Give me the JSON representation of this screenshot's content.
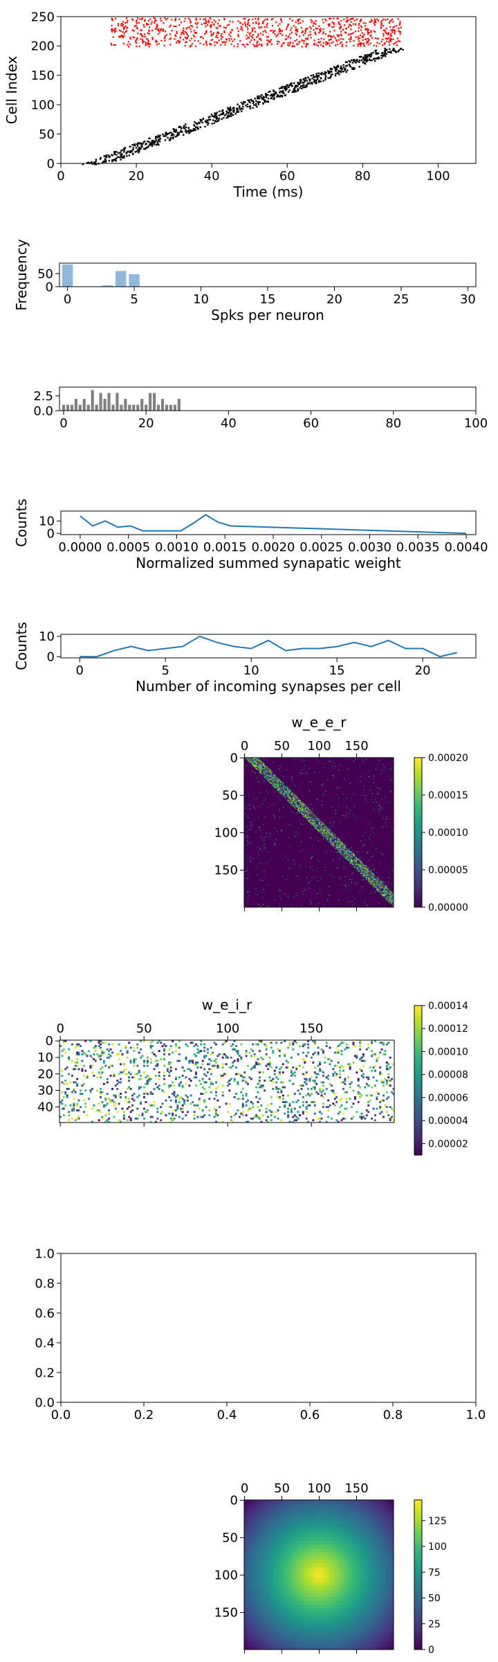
{
  "chart_data": [
    {
      "id": "raster",
      "type": "scatter",
      "xlabel": "Time (ms)",
      "ylabel": "Cell Index",
      "xlim": [
        0,
        110
      ],
      "ylim": [
        0,
        250
      ],
      "xticks": [
        0,
        20,
        40,
        60,
        80,
        100
      ],
      "yticks": [
        0,
        50,
        100,
        150,
        200,
        250
      ],
      "series": [
        {
          "color": "#000000",
          "description_points": "diagonal sequence",
          "x_range": [
            9,
            90
          ],
          "y_range": [
            0,
            197
          ]
        },
        {
          "color": "#ff0000",
          "description_points": "inhibitory band",
          "x_range": [
            13,
            90
          ],
          "y_range": [
            200,
            249
          ]
        }
      ]
    },
    {
      "id": "spk_hist",
      "type": "bar",
      "xlabel": "Spks per neuron",
      "ylabel": "Frequency",
      "xlim": [
        -0.6,
        30.6
      ],
      "ylim": [
        0,
        90
      ],
      "xticks": [
        0,
        5,
        10,
        15,
        20,
        25,
        30
      ],
      "yticks": [
        0,
        50
      ],
      "color": "#8fb8de",
      "x": [
        0,
        3,
        4,
        5
      ],
      "values": [
        85,
        5,
        60,
        48
      ]
    },
    {
      "id": "isi_hist",
      "type": "bar",
      "xlabel": "",
      "ylabel": "",
      "xlim": [
        -1,
        100
      ],
      "ylim": [
        0,
        4
      ],
      "xticks": [
        0,
        20,
        40,
        60,
        80,
        100
      ],
      "yticks": [
        0.0,
        2.5
      ],
      "ytick_labels": [
        "0.0",
        "2.5"
      ],
      "color": "#808080",
      "x": [
        0,
        1,
        2,
        3,
        4,
        5,
        6,
        7,
        8,
        9,
        10,
        11,
        12,
        13,
        14,
        15,
        16,
        17,
        18,
        19,
        20,
        21,
        22,
        23,
        24,
        25,
        26,
        27,
        28
      ],
      "values": [
        1,
        1,
        1,
        2,
        1,
        2,
        1,
        3.5,
        1,
        3,
        2,
        3,
        1,
        3,
        1,
        2,
        1,
        1,
        1,
        2,
        1,
        3,
        3,
        1,
        2,
        1,
        1,
        1,
        2
      ]
    },
    {
      "id": "weight_hist",
      "type": "line",
      "xlabel": "Normalized summed synapatic weight",
      "ylabel": "Counts",
      "xlim": [
        -0.0002,
        0.0041
      ],
      "ylim": [
        -1,
        18
      ],
      "xticks": [
        0.0,
        0.0005,
        0.001,
        0.0015,
        0.002,
        0.0025,
        0.003,
        0.0035,
        0.004
      ],
      "xtick_labels": [
        "0.0000",
        "0.0005",
        "0.0010",
        "0.0015",
        "0.0020",
        "0.0025",
        "0.0030",
        "0.0035",
        "0.0040"
      ],
      "yticks": [
        0,
        10
      ],
      "color": "#1f77b4",
      "x": [
        0.0,
        0.00013,
        0.00026,
        0.00039,
        0.00052,
        0.00065,
        0.00078,
        0.00091,
        0.00104,
        0.00117,
        0.0013,
        0.00143,
        0.00156,
        0.004
      ],
      "values": [
        14,
        6,
        10,
        5,
        6,
        2,
        2,
        2,
        2,
        8,
        15,
        9,
        6,
        0
      ]
    },
    {
      "id": "indeg_hist",
      "type": "line",
      "xlabel": "Number of incoming synapses per cell",
      "ylabel": "Counts",
      "xlim": [
        -1.1,
        23.1
      ],
      "ylim": [
        -0.6,
        11
      ],
      "xticks": [
        0,
        5,
        10,
        15,
        20
      ],
      "yticks": [
        0,
        10
      ],
      "color": "#1f77b4",
      "x": [
        0,
        1,
        2,
        3,
        4,
        5,
        6,
        7,
        8,
        9,
        10,
        11,
        12,
        13,
        14,
        15,
        16,
        17,
        18,
        19,
        20,
        21,
        22
      ],
      "values": [
        0,
        0,
        3,
        5,
        3,
        4,
        5,
        10,
        7,
        5,
        4,
        8,
        3,
        4,
        4,
        5,
        7,
        5,
        8,
        4,
        4,
        0,
        2
      ]
    },
    {
      "id": "w_e_e_r",
      "type": "heatmap",
      "title": "w_e_e_r",
      "xticks": [
        0,
        50,
        100,
        150
      ],
      "yticks": [
        0,
        50,
        100,
        150
      ],
      "rows": 200,
      "cols": 200,
      "colorbar_ticks": [
        "0.00000",
        "0.00005",
        "0.00010",
        "0.00015",
        "0.00020"
      ],
      "colorbar_range": [
        0,
        0.0002
      ],
      "colormap": "viridis"
    },
    {
      "id": "w_e_i_r",
      "type": "heatmap",
      "title": "w_e_i_r",
      "xticks": [
        0,
        50,
        100,
        150
      ],
      "yticks": [
        0,
        10,
        20,
        30,
        40
      ],
      "rows": 50,
      "cols": 200,
      "colorbar_ticks": [
        "0.00002",
        "0.00004",
        "0.00006",
        "0.00008",
        "0.00010",
        "0.00012",
        "0.00014"
      ],
      "colorbar_range": [
        1e-05,
        0.00014
      ],
      "colormap": "viridis"
    },
    {
      "id": "empty_axes",
      "type": "scatter",
      "xlim": [
        0,
        1
      ],
      "ylim": [
        0,
        1
      ],
      "xticks": [
        0.0,
        0.2,
        0.4,
        0.6,
        0.8,
        1.0
      ],
      "yticks": [
        0.0,
        0.2,
        0.4,
        0.6,
        0.8,
        1.0
      ],
      "xtick_labels": [
        "0.0",
        "0.2",
        "0.4",
        "0.6",
        "0.8",
        "1.0"
      ],
      "ytick_labels": [
        "0.0",
        "0.2",
        "0.4",
        "0.6",
        "0.8",
        "1.0"
      ]
    },
    {
      "id": "dist_map",
      "type": "heatmap",
      "xticks": [
        0,
        50,
        100,
        150
      ],
      "yticks": [
        0,
        50,
        100,
        150
      ],
      "rows": 200,
      "cols": 200,
      "colorbar_ticks": [
        "0",
        "25",
        "50",
        "75",
        "100",
        "125"
      ],
      "colorbar_range": [
        0,
        145
      ],
      "colormap": "viridis"
    }
  ]
}
